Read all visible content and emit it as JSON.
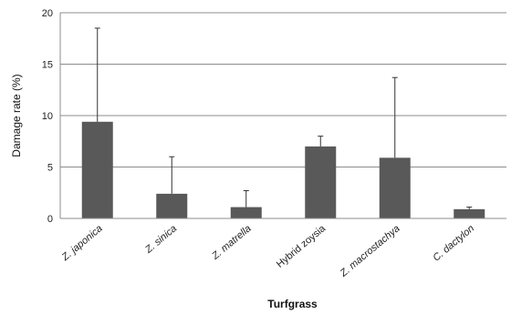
{
  "chart_data": {
    "type": "bar",
    "title": "",
    "xlabel": "Turfgrass",
    "ylabel": "Damage rate (%)",
    "categories": [
      "Z. japonica",
      "Z. sinica",
      "Z. matrella",
      "Hybrid zoysia",
      "Z. macrostachya",
      "C. dactylon"
    ],
    "category_italic": [
      true,
      true,
      true,
      false,
      true,
      true
    ],
    "values": [
      9.4,
      2.4,
      1.1,
      7.0,
      5.9,
      0.9
    ],
    "error_upper": [
      9.1,
      3.6,
      1.6,
      1.0,
      7.8,
      0.2
    ],
    "ylim": [
      0,
      20
    ],
    "yticks": [
      0,
      5,
      10,
      15,
      20
    ],
    "grid": true,
    "legend": "none",
    "bar_color": "#595959",
    "grid_color": "#8c8c8c"
  }
}
